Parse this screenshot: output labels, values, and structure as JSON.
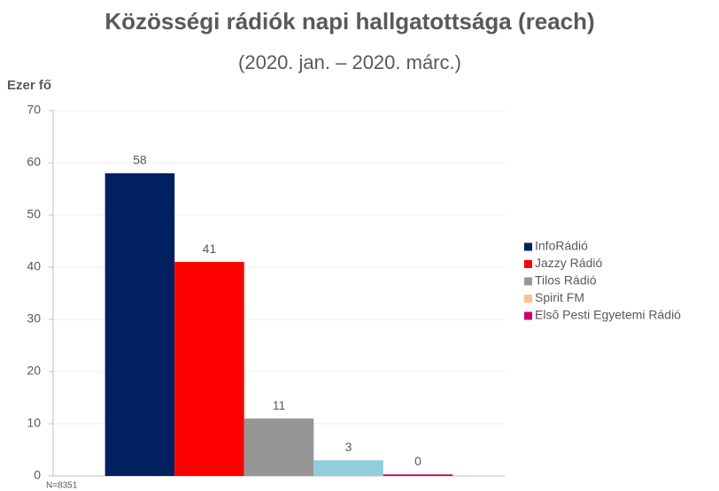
{
  "chart_data": {
    "type": "bar",
    "title": "Közösségi rádiók napi hallgatottsága (reach)",
    "subtitle": "(2020. jan. – 2020. márc.)",
    "y_label": "Ezer fő",
    "note": "N=8351",
    "categories": [
      null
    ],
    "series": [
      {
        "name": "InfoRádió",
        "color": "#002060",
        "values": [
          58
        ]
      },
      {
        "name": "Jazzy Rádió",
        "color": "#ff0000",
        "values": [
          41
        ]
      },
      {
        "name": "Tilos Rádió",
        "color": "#969696",
        "values": [
          11
        ]
      },
      {
        "name": "Spirit FM",
        "color": "#92cddc",
        "legend_color": "#fac090",
        "values": [
          3
        ]
      },
      {
        "name": "Elsõ Pesti Egyetemi Rádió",
        "color": "#cc0066",
        "values": [
          0.3
        ],
        "value_labels": [
          "0"
        ]
      }
    ],
    "ylim": [
      0,
      70
    ],
    "yticks": [
      0,
      10,
      20,
      30,
      40,
      50,
      60,
      70
    ],
    "grid": true,
    "legend": "right"
  }
}
